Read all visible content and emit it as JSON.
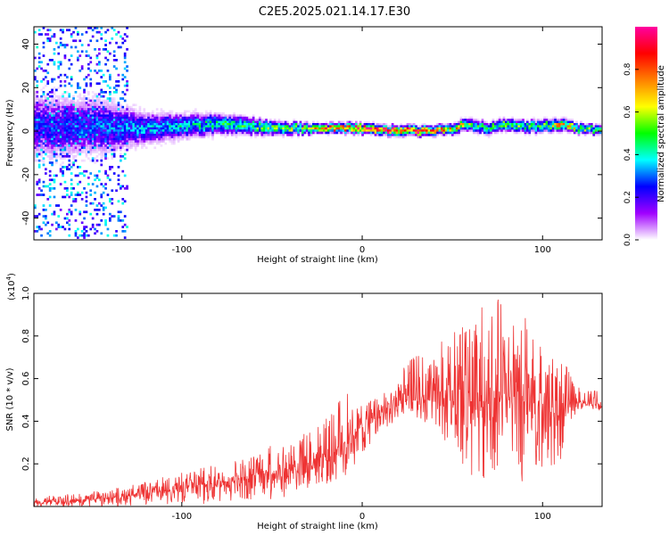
{
  "title": "C2E5.2025.021.14.17.E30",
  "chart_data": [
    {
      "type": "heatmap",
      "xlabel": "Height of straight line (km)",
      "ylabel": "Frequency (Hz)",
      "xlim": [
        -182,
        133
      ],
      "ylim": [
        -50,
        48
      ],
      "x_ticks": [
        -100,
        0,
        100
      ],
      "x_tick_labels": [
        "-100",
        "0",
        "100"
      ],
      "y_ticks": [
        -40,
        -20,
        0,
        20,
        40
      ],
      "y_tick_labels": [
        "-40",
        "-20",
        "0",
        "20",
        "40"
      ],
      "colorbar": {
        "label": "Normalized spectral amplitude",
        "range": [
          0.0,
          1.0
        ],
        "ticks": [
          0.0,
          0.2,
          0.4,
          0.6,
          0.8
        ],
        "tick_labels": [
          "0.0",
          "0.2",
          "0.4",
          "0.6",
          "0.8"
        ],
        "colormap": [
          "#ffffff",
          "#a000ff",
          "#0000ff",
          "#00ffff",
          "#00ff00",
          "#ffff00",
          "#ff8000",
          "#ff0000",
          "#ff00a0"
        ]
      },
      "ridge": {
        "x": [
          -182,
          -140,
          -120,
          -100,
          -80,
          -60,
          -40,
          -20,
          -10,
          0,
          10,
          20,
          30,
          40,
          50,
          60,
          70,
          80,
          90,
          100,
          110,
          120,
          133
        ],
        "center_hz": [
          2,
          2,
          1,
          2,
          3,
          2,
          1,
          1,
          1,
          1,
          0,
          0,
          0,
          0,
          1,
          3,
          1,
          3,
          2,
          2,
          3,
          1,
          0
        ],
        "peak_amplitude": [
          0.25,
          0.3,
          0.35,
          0.4,
          0.45,
          0.5,
          0.6,
          0.75,
          0.9,
          0.95,
          0.95,
          0.95,
          0.9,
          0.8,
          0.7,
          0.55,
          0.5,
          0.55,
          0.5,
          0.55,
          0.7,
          0.6,
          0.5
        ],
        "spread_hz": [
          30,
          25,
          15,
          12,
          10,
          8,
          6,
          4,
          3,
          3,
          3,
          3,
          3,
          4,
          5,
          6,
          6,
          6,
          6,
          6,
          6,
          5,
          4
        ]
      }
    },
    {
      "type": "line",
      "xlabel": "Height of straight line (km)",
      "ylabel": "SNR (10 * v/v)",
      "y_multiplier": "(x10",
      "y_multiplier_exp": "4",
      "y_multiplier_close": ")",
      "xlim": [
        -182,
        133
      ],
      "ylim": [
        0.0,
        1.0
      ],
      "x_ticks": [
        -100,
        0,
        100
      ],
      "x_tick_labels": [
        "-100",
        "0",
        "100"
      ],
      "y_ticks": [
        0.2,
        0.4,
        0.6,
        0.8,
        1.0
      ],
      "y_tick_labels": [
        "0.2",
        "0.4",
        "0.6",
        "0.8",
        "1.0"
      ],
      "series": [
        {
          "color": "#ee3333",
          "envelope": {
            "x": [
              -182,
              -160,
              -140,
              -120,
              -100,
              -80,
              -60,
              -50,
              -40,
              -30,
              -20,
              -10,
              0,
              10,
              20,
              30,
              40,
              50,
              60,
              70,
              80,
              90,
              100,
              110,
              115,
              120,
              133
            ],
            "y_low": [
              0.0,
              0.0,
              0.0,
              0.0,
              0.01,
              0.01,
              0.02,
              0.03,
              0.05,
              0.08,
              0.1,
              0.14,
              0.2,
              0.35,
              0.4,
              0.42,
              0.35,
              0.25,
              0.15,
              0.12,
              0.15,
              0.1,
              0.18,
              0.2,
              0.4,
              0.45,
              0.45
            ],
            "y_mean": [
              0.02,
              0.025,
              0.04,
              0.06,
              0.09,
              0.11,
              0.15,
              0.16,
              0.18,
              0.2,
              0.24,
              0.3,
              0.38,
              0.44,
              0.48,
              0.5,
              0.5,
              0.52,
              0.5,
              0.49,
              0.52,
              0.5,
              0.47,
              0.42,
              0.48,
              0.49,
              0.48
            ],
            "y_high": [
              0.05,
              0.06,
              0.08,
              0.12,
              0.16,
              0.2,
              0.24,
              0.3,
              0.32,
              0.35,
              0.42,
              0.55,
              0.48,
              0.52,
              0.62,
              0.72,
              0.75,
              0.82,
              0.88,
              1.0,
              0.95,
              0.9,
              0.8,
              0.75,
              0.62,
              0.56,
              0.54
            ]
          }
        }
      ]
    }
  ]
}
